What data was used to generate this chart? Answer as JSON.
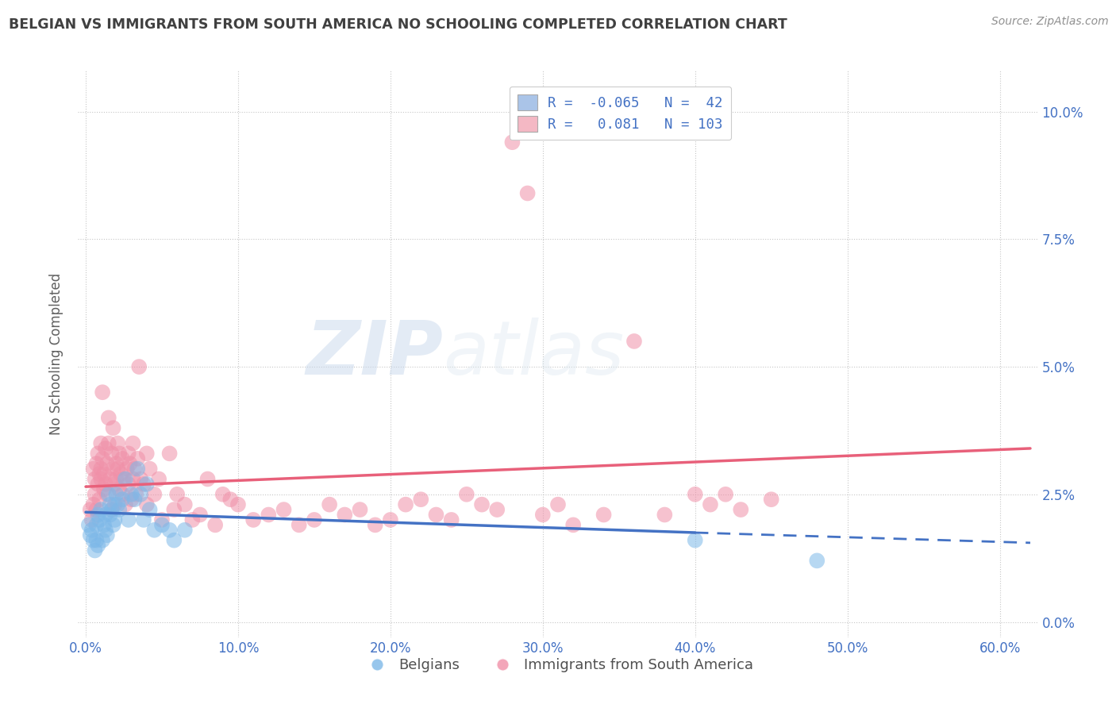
{
  "title": "BELGIAN VS IMMIGRANTS FROM SOUTH AMERICA NO SCHOOLING COMPLETED CORRELATION CHART",
  "source_text": "Source: ZipAtlas.com",
  "ylabel": "No Schooling Completed",
  "xlabel_ticks": [
    "0.0%",
    "10.0%",
    "20.0%",
    "30.0%",
    "40.0%",
    "50.0%",
    "60.0%"
  ],
  "xlabel_vals": [
    0.0,
    0.1,
    0.2,
    0.3,
    0.4,
    0.5,
    0.6
  ],
  "ylabel_ticks": [
    "0.0%",
    "2.5%",
    "5.0%",
    "7.5%",
    "10.0%"
  ],
  "ylabel_vals": [
    0.0,
    0.025,
    0.05,
    0.075,
    0.1
  ],
  "xlim": [
    -0.005,
    0.625
  ],
  "ylim": [
    -0.003,
    0.108
  ],
  "legend_entries": [
    {
      "label_r": "R = -0.065",
      "label_n": "N =  42",
      "color": "#aac4e8"
    },
    {
      "label_r": "R =  0.081",
      "label_n": "N = 103",
      "color": "#f4b8c4"
    }
  ],
  "watermark_zip": "ZIP",
  "watermark_atlas": "atlas",
  "blue_color": "#4472c4",
  "pink_color": "#e8607a",
  "blue_dot_color": "#7db8e8",
  "pink_dot_color": "#f090a8",
  "title_color": "#404040",
  "axis_color": "#4472c4",
  "blue_scatter": [
    [
      0.002,
      0.019
    ],
    [
      0.003,
      0.017
    ],
    [
      0.004,
      0.018
    ],
    [
      0.005,
      0.016
    ],
    [
      0.006,
      0.014
    ],
    [
      0.007,
      0.016
    ],
    [
      0.007,
      0.019
    ],
    [
      0.008,
      0.021
    ],
    [
      0.008,
      0.015
    ],
    [
      0.009,
      0.02
    ],
    [
      0.01,
      0.022
    ],
    [
      0.011,
      0.016
    ],
    [
      0.012,
      0.019
    ],
    [
      0.013,
      0.021
    ],
    [
      0.013,
      0.018
    ],
    [
      0.014,
      0.017
    ],
    [
      0.015,
      0.025
    ],
    [
      0.016,
      0.023
    ],
    [
      0.016,
      0.021
    ],
    [
      0.017,
      0.022
    ],
    [
      0.018,
      0.019
    ],
    [
      0.019,
      0.02
    ],
    [
      0.02,
      0.025
    ],
    [
      0.021,
      0.023
    ],
    [
      0.022,
      0.022
    ],
    [
      0.024,
      0.024
    ],
    [
      0.026,
      0.028
    ],
    [
      0.028,
      0.02
    ],
    [
      0.03,
      0.025
    ],
    [
      0.032,
      0.024
    ],
    [
      0.034,
      0.03
    ],
    [
      0.036,
      0.025
    ],
    [
      0.038,
      0.02
    ],
    [
      0.04,
      0.027
    ],
    [
      0.042,
      0.022
    ],
    [
      0.045,
      0.018
    ],
    [
      0.05,
      0.019
    ],
    [
      0.055,
      0.018
    ],
    [
      0.058,
      0.016
    ],
    [
      0.065,
      0.018
    ],
    [
      0.4,
      0.016
    ],
    [
      0.48,
      0.012
    ]
  ],
  "pink_scatter": [
    [
      0.003,
      0.022
    ],
    [
      0.004,
      0.02
    ],
    [
      0.005,
      0.03
    ],
    [
      0.005,
      0.023
    ],
    [
      0.006,
      0.025
    ],
    [
      0.006,
      0.028
    ],
    [
      0.007,
      0.022
    ],
    [
      0.007,
      0.031
    ],
    [
      0.008,
      0.027
    ],
    [
      0.008,
      0.033
    ],
    [
      0.009,
      0.029
    ],
    [
      0.009,
      0.024
    ],
    [
      0.01,
      0.035
    ],
    [
      0.01,
      0.03
    ],
    [
      0.01,
      0.028
    ],
    [
      0.011,
      0.045
    ],
    [
      0.011,
      0.032
    ],
    [
      0.012,
      0.029
    ],
    [
      0.012,
      0.026
    ],
    [
      0.013,
      0.034
    ],
    [
      0.013,
      0.027
    ],
    [
      0.014,
      0.031
    ],
    [
      0.014,
      0.025
    ],
    [
      0.015,
      0.04
    ],
    [
      0.015,
      0.035
    ],
    [
      0.016,
      0.028
    ],
    [
      0.017,
      0.033
    ],
    [
      0.017,
      0.022
    ],
    [
      0.018,
      0.03
    ],
    [
      0.018,
      0.038
    ],
    [
      0.019,
      0.027
    ],
    [
      0.019,
      0.023
    ],
    [
      0.02,
      0.031
    ],
    [
      0.02,
      0.028
    ],
    [
      0.021,
      0.035
    ],
    [
      0.021,
      0.03
    ],
    [
      0.022,
      0.026
    ],
    [
      0.022,
      0.033
    ],
    [
      0.023,
      0.029
    ],
    [
      0.024,
      0.032
    ],
    [
      0.024,
      0.025
    ],
    [
      0.025,
      0.028
    ],
    [
      0.026,
      0.023
    ],
    [
      0.027,
      0.03
    ],
    [
      0.028,
      0.027
    ],
    [
      0.028,
      0.033
    ],
    [
      0.029,
      0.031
    ],
    [
      0.03,
      0.024
    ],
    [
      0.031,
      0.035
    ],
    [
      0.031,
      0.028
    ],
    [
      0.032,
      0.03
    ],
    [
      0.033,
      0.025
    ],
    [
      0.034,
      0.032
    ],
    [
      0.035,
      0.05
    ],
    [
      0.036,
      0.028
    ],
    [
      0.038,
      0.027
    ],
    [
      0.04,
      0.033
    ],
    [
      0.04,
      0.023
    ],
    [
      0.042,
      0.03
    ],
    [
      0.045,
      0.025
    ],
    [
      0.048,
      0.028
    ],
    [
      0.05,
      0.02
    ],
    [
      0.055,
      0.033
    ],
    [
      0.058,
      0.022
    ],
    [
      0.06,
      0.025
    ],
    [
      0.065,
      0.023
    ],
    [
      0.07,
      0.02
    ],
    [
      0.075,
      0.021
    ],
    [
      0.08,
      0.028
    ],
    [
      0.085,
      0.019
    ],
    [
      0.09,
      0.025
    ],
    [
      0.095,
      0.024
    ],
    [
      0.1,
      0.023
    ],
    [
      0.11,
      0.02
    ],
    [
      0.12,
      0.021
    ],
    [
      0.13,
      0.022
    ],
    [
      0.14,
      0.019
    ],
    [
      0.15,
      0.02
    ],
    [
      0.16,
      0.023
    ],
    [
      0.17,
      0.021
    ],
    [
      0.18,
      0.022
    ],
    [
      0.19,
      0.019
    ],
    [
      0.2,
      0.02
    ],
    [
      0.21,
      0.023
    ],
    [
      0.22,
      0.024
    ],
    [
      0.23,
      0.021
    ],
    [
      0.24,
      0.02
    ],
    [
      0.25,
      0.025
    ],
    [
      0.26,
      0.023
    ],
    [
      0.27,
      0.022
    ],
    [
      0.28,
      0.094
    ],
    [
      0.29,
      0.084
    ],
    [
      0.3,
      0.021
    ],
    [
      0.31,
      0.023
    ],
    [
      0.32,
      0.019
    ],
    [
      0.34,
      0.021
    ],
    [
      0.36,
      0.055
    ],
    [
      0.38,
      0.021
    ],
    [
      0.4,
      0.025
    ],
    [
      0.41,
      0.023
    ],
    [
      0.42,
      0.025
    ],
    [
      0.43,
      0.022
    ],
    [
      0.45,
      0.024
    ]
  ],
  "blue_line_solid": {
    "x0": 0.0,
    "y0": 0.0215,
    "x1": 0.4,
    "y1": 0.0175
  },
  "blue_line_dashed": {
    "x0": 0.4,
    "y0": 0.0175,
    "x1": 0.62,
    "y1": 0.0155
  },
  "pink_line": {
    "x0": 0.0,
    "y0": 0.0265,
    "x1": 0.62,
    "y1": 0.034
  },
  "legend_label_blue": "Belgians",
  "legend_label_pink": "Immigrants from South America"
}
